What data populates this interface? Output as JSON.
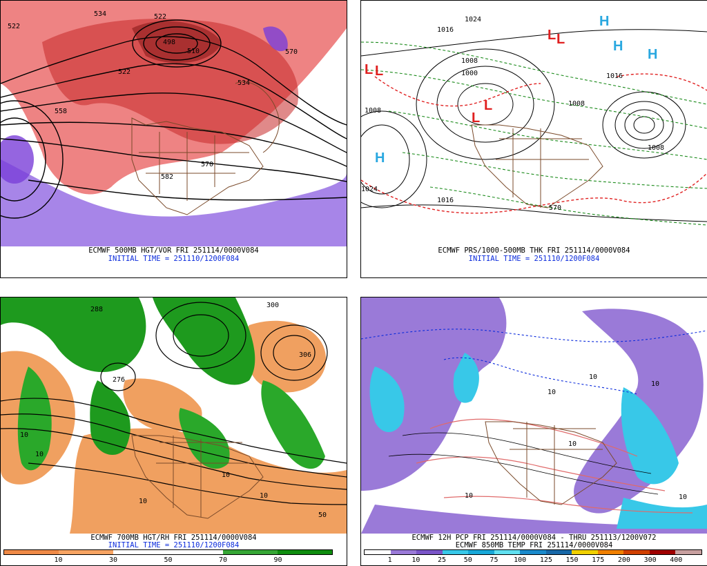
{
  "panels": {
    "p1": {
      "title": "ECMWF 500MB HGT/VOR FRI 251114/0000V084",
      "init": "INITIAL TIME = 251110/1200F084",
      "contour_labels": [
        "534",
        "522",
        "522",
        "558",
        "570",
        "534",
        "522",
        "570",
        "498",
        "510",
        "582"
      ]
    },
    "p2": {
      "title": "ECMWF PRS/1000-500MB THK FRI 251114/0000V084",
      "init": "INITIAL TIME = 251110/1200F084",
      "contour_labels": [
        "1024",
        "1016",
        "1008",
        "1000",
        "1008",
        "1008",
        "1016",
        "1024",
        "1016",
        "1008",
        "570"
      ],
      "centers": [
        "L",
        "L",
        "L",
        "L",
        "H",
        "H",
        "H",
        "H",
        "L",
        "L"
      ]
    },
    "p3": {
      "title": "ECMWF 700MB HGT/RH FRI 251114/0000V084",
      "init": "INITIAL TIME = 251110/1200F084",
      "contour_labels": [
        "300",
        "306",
        "276",
        "288",
        "10",
        "10",
        "10",
        "10",
        "50",
        "10"
      ],
      "colorbar": {
        "colors": [
          "#ef8a47",
          "#f7a463",
          "#ffffff",
          "#ffffff",
          "#36a635",
          "#0f8d0f"
        ],
        "ticks": [
          "10",
          "30",
          "50",
          "70",
          "90"
        ]
      }
    },
    "p4": {
      "title": "ECMWF 12H PCP FRI 251114/0000V084 - THRU 251113/1200V072",
      "subtitle": "ECMWF 850MB TEMP FRI 251114/0000V084",
      "contour_labels": [
        "10",
        "10",
        "10",
        "10",
        "10",
        "10"
      ],
      "colorbar": {
        "colors": [
          "#ffffff",
          "#9a7ad8",
          "#7a55c8",
          "#38c8e8",
          "#18a8d8",
          "#60e0f0",
          "#1a8acb",
          "#1868a8",
          "#f0d000",
          "#f08000",
          "#d04000",
          "#a00000",
          "#c8a0a0"
        ],
        "ticks": [
          "1",
          "10",
          "25",
          "50",
          "75",
          "100",
          "125",
          "150",
          "175",
          "200",
          "300",
          "400"
        ]
      }
    }
  }
}
